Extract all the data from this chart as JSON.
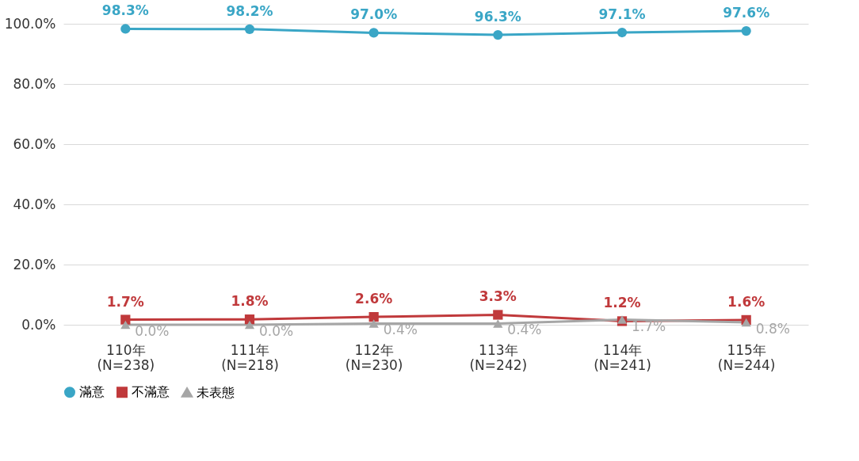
{
  "chart_data": {
    "type": "line",
    "categories": [
      "110年\n(N=238)",
      "111年\n(N=218)",
      "112年\n(N=230)",
      "113年\n(N=242)",
      "114年\n(N=241)",
      "115年\n(N=244)"
    ],
    "series": [
      {
        "name": "滿意",
        "color": "#3aa6c6",
        "marker": "circle",
        "values": [
          98.3,
          98.2,
          97.0,
          96.3,
          97.1,
          97.6
        ],
        "value_labels": [
          "98.3%",
          "98.2%",
          "97.0%",
          "96.3%",
          "97.1%",
          "97.6%"
        ]
      },
      {
        "name": "不滿意",
        "color": "#c0393b",
        "marker": "square",
        "values": [
          1.7,
          1.8,
          2.6,
          3.3,
          1.2,
          1.6
        ],
        "value_labels": [
          "1.7%",
          "1.8%",
          "2.6%",
          "3.3%",
          "1.2%",
          "1.6%"
        ]
      },
      {
        "name": "未表態",
        "color": "#a6a6a6",
        "marker": "triangle",
        "values": [
          0.0,
          0.0,
          0.4,
          0.4,
          1.7,
          0.8
        ],
        "value_labels": [
          "0.0%",
          "0.0%",
          "0.4%",
          "0.4%",
          "1.7%",
          "0.8%"
        ]
      }
    ],
    "ylim": [
      0,
      100
    ],
    "yticks": [
      {
        "value": 0,
        "label": "0.0%"
      },
      {
        "value": 20,
        "label": "20.0%"
      },
      {
        "value": 40,
        "label": "40.0%"
      },
      {
        "value": 60,
        "label": "60.0%"
      },
      {
        "value": 80,
        "label": "80.0%"
      },
      {
        "value": 100,
        "label": "100.0%"
      }
    ],
    "grid": "y",
    "legend": "bottom",
    "line_style": "solid"
  }
}
